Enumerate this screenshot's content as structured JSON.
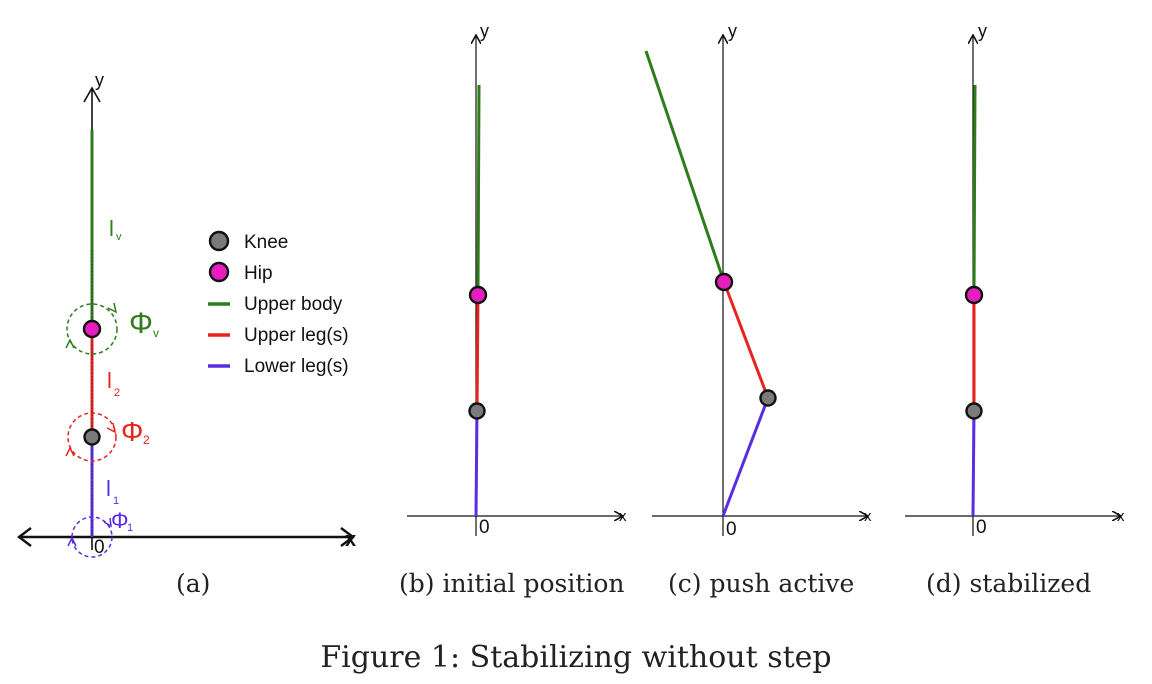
{
  "colors": {
    "upper_body": "#2e7d1a",
    "upper_leg": "#e8231d",
    "lower_leg": "#5a2de0",
    "knee": "#7a7a7a",
    "hip": "#e81dc0",
    "axis": "#111111"
  },
  "panels": {
    "a": {
      "caption": "(a)",
      "y_label": "y",
      "x_label": "x",
      "origin_label": "0",
      "l_v": "l",
      "l_v_sub": "v",
      "l_2": "l",
      "l_2_sub": "2",
      "l_1": "l",
      "l_1_sub": "1",
      "phi_v": "Φ",
      "phi_v_sub": "v",
      "phi_2": "Φ",
      "phi_2_sub": "2",
      "phi_1": "Φ",
      "phi_1_sub": "1"
    },
    "b": {
      "caption": "(b) initial position",
      "y_label": "y",
      "x_label": "x",
      "origin_label": "0"
    },
    "c": {
      "caption": "(c) push active",
      "y_label": "y",
      "x_label": "x",
      "origin_label": "0"
    },
    "d": {
      "caption": "(d) stabilized",
      "y_label": "y",
      "x_label": "x",
      "origin_label": "0"
    }
  },
  "legend": {
    "knee": "Knee",
    "hip": "Hip",
    "upper_body": "Upper body",
    "upper_leg": "Upper leg(s)",
    "lower_leg": "Lower leg(s)"
  },
  "figure_caption": "Figure 1: Stabilizing without step"
}
